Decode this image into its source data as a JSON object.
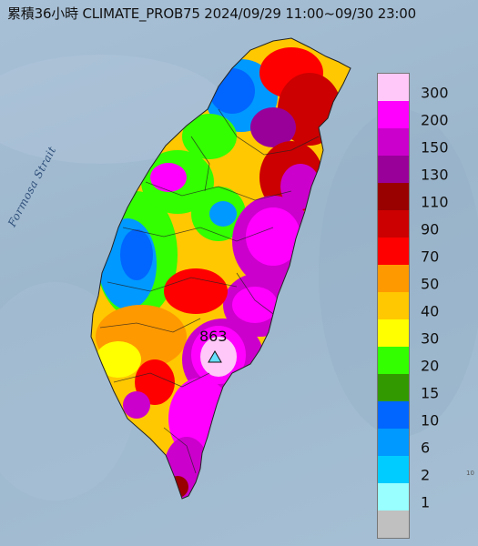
{
  "title": "累積36小時 CLIMATE_PROB75 2024/09/29 11:00~09/30 23:00",
  "sea_label": "Formosa Strait",
  "max_marker": {
    "value": "863",
    "symbol": "triangle"
  },
  "corner_text": "10",
  "legend": [
    {
      "label": "300",
      "color": "#ffc8f8"
    },
    {
      "label": "200",
      "color": "#ff00ff"
    },
    {
      "label": "150",
      "color": "#cc00cc"
    },
    {
      "label": "130",
      "color": "#990099"
    },
    {
      "label": "110",
      "color": "#990000"
    },
    {
      "label": "90",
      "color": "#cc0000"
    },
    {
      "label": "70",
      "color": "#ff0000"
    },
    {
      "label": "50",
      "color": "#ff9900"
    },
    {
      "label": "40",
      "color": "#ffc800"
    },
    {
      "label": "30",
      "color": "#ffff00"
    },
    {
      "label": "20",
      "color": "#33ff00"
    },
    {
      "label": "15",
      "color": "#339900"
    },
    {
      "label": "10",
      "color": "#0066ff"
    },
    {
      "label": "6",
      "color": "#0099ff"
    },
    {
      "label": "2",
      "color": "#00ccff"
    },
    {
      "label": "1",
      "color": "#99ffff"
    },
    {
      "label": "",
      "color": "#c0c0c0"
    }
  ]
}
